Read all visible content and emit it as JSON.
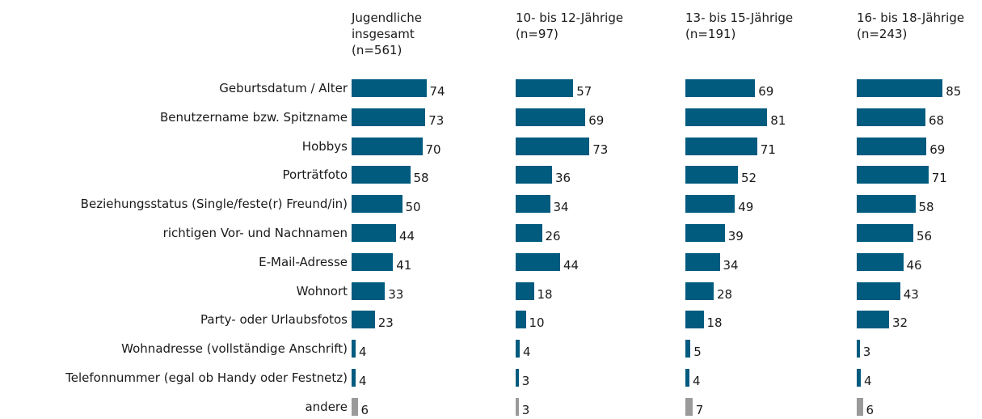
{
  "chart_data": {
    "type": "bar",
    "categories": [
      "Geburtsdatum / Alter",
      "Benutzername bzw. Spitzname",
      "Hobbys",
      "Porträtfoto",
      "Beziehungsstatus (Single/feste(r) Freund/in)",
      "richtigen Vor- und Nachnamen",
      "E-Mail-Adresse",
      "Wohnort",
      "Party- oder Urlaubsfotos",
      "Wohnadresse (vollständige Anschrift)",
      "Telefonnummer (egal ob Handy oder Festnetz)",
      "andere"
    ],
    "category_colors": [
      "#005b7f",
      "#005b7f",
      "#005b7f",
      "#005b7f",
      "#005b7f",
      "#005b7f",
      "#005b7f",
      "#005b7f",
      "#005b7f",
      "#005b7f",
      "#005b7f",
      "#9a9a9a"
    ],
    "series": [
      {
        "name": "Jugendliche insgesamt (n=561)",
        "values": [
          74,
          73,
          70,
          58,
          50,
          44,
          41,
          33,
          23,
          4,
          4,
          6
        ]
      },
      {
        "name": "10- bis 12-Jährige (n=97)",
        "values": [
          57,
          69,
          73,
          36,
          34,
          26,
          44,
          18,
          10,
          4,
          3,
          3
        ]
      },
      {
        "name": "13- bis 15-Jährige (n=191)",
        "values": [
          69,
          81,
          71,
          52,
          49,
          39,
          34,
          28,
          18,
          5,
          4,
          7
        ]
      },
      {
        "name": "16- bis 18-Jährige (n=243)",
        "values": [
          85,
          68,
          69,
          71,
          58,
          56,
          46,
          43,
          32,
          3,
          4,
          6
        ]
      }
    ]
  }
}
